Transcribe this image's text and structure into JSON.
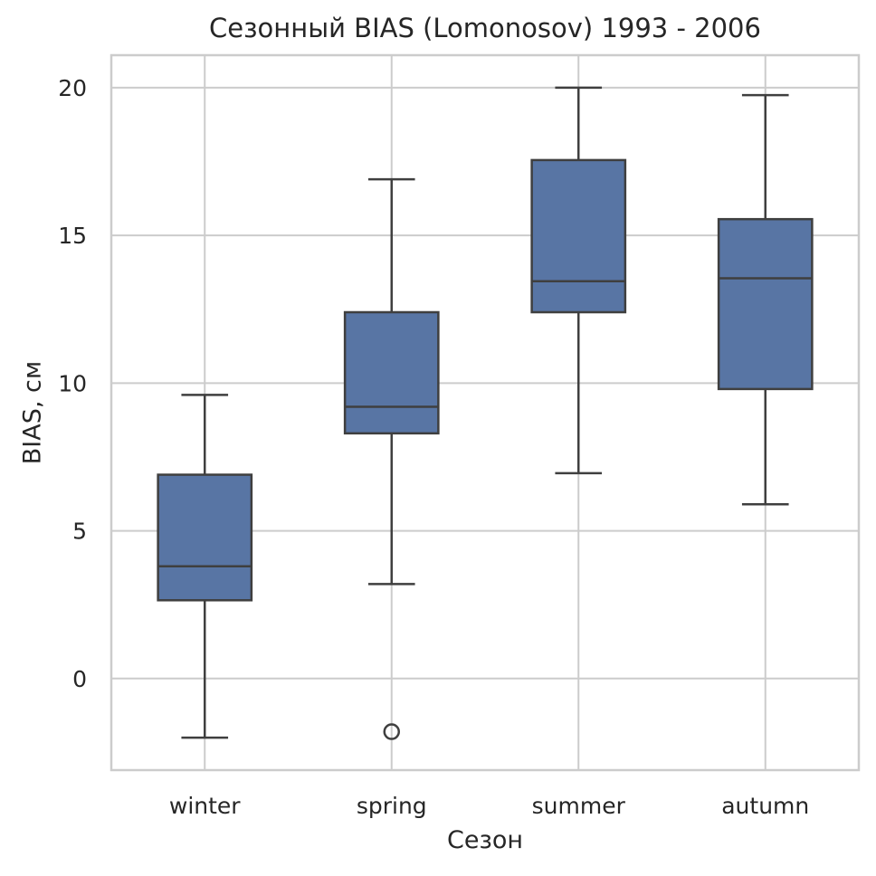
{
  "chart_data": {
    "type": "box",
    "title": "Сезонный BIAS (Lomonosov) 1993 - 2006",
    "xlabel": "Сезон",
    "ylabel": "BIAS, см",
    "categories": [
      "winter",
      "spring",
      "summer",
      "autumn"
    ],
    "ylim": [
      -3.1,
      21.1
    ],
    "yticks": [
      0,
      5,
      10,
      15,
      20
    ],
    "grid": true,
    "box_color": "#5875A4",
    "edge_color": "#3F3F3F",
    "grid_color": "#CCCCCC",
    "series": [
      {
        "category": "winter",
        "whislo": -2.0,
        "q1": 2.65,
        "median": 3.8,
        "q3": 6.9,
        "whishi": 9.6,
        "fliers": []
      },
      {
        "category": "spring",
        "whislo": 3.2,
        "q1": 8.3,
        "median": 9.2,
        "q3": 12.4,
        "whishi": 16.9,
        "fliers": [
          -1.8
        ]
      },
      {
        "category": "summer",
        "whislo": 6.95,
        "q1": 12.4,
        "median": 13.45,
        "q3": 17.55,
        "whishi": 20.0,
        "fliers": []
      },
      {
        "category": "autumn",
        "whislo": 5.9,
        "q1": 9.8,
        "median": 13.55,
        "q3": 15.55,
        "whishi": 19.75,
        "fliers": []
      }
    ]
  }
}
